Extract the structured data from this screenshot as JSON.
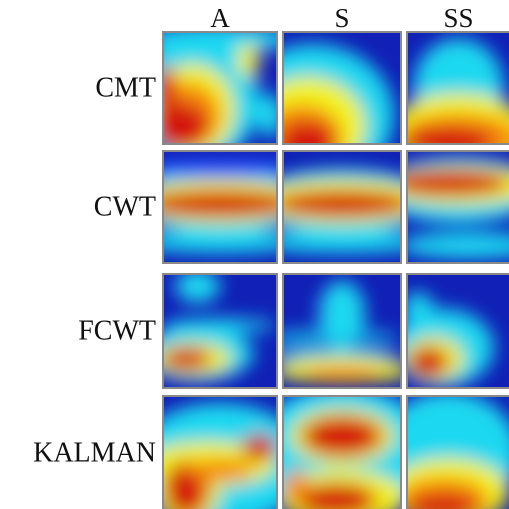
{
  "columns": [
    "A",
    "S",
    "SS"
  ],
  "rows": [
    "CMT",
    "CWT",
    "FCWT",
    "KALMAN"
  ]
}
